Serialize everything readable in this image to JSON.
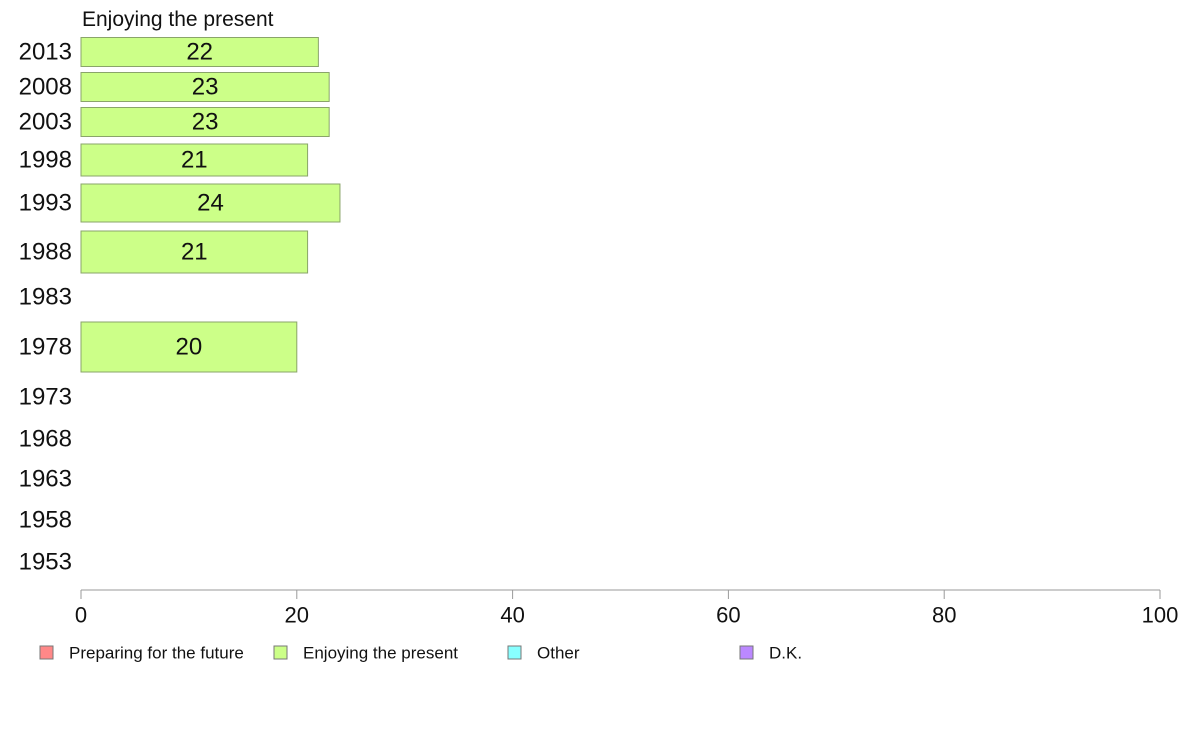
{
  "chart_data": {
    "type": "bar",
    "orientation": "horizontal",
    "panel_title": "Enjoying the present",
    "categories": [
      "2013",
      "2008",
      "2003",
      "1998",
      "1993",
      "1988",
      "1983",
      "1978",
      "1973",
      "1968",
      "1963",
      "1958",
      "1953"
    ],
    "series": [
      {
        "name": "Enjoying the present",
        "values": [
          22,
          23,
          23,
          21,
          24,
          21,
          null,
          20,
          null,
          null,
          null,
          null,
          null
        ],
        "labels": [
          "22",
          "23",
          "23",
          "21",
          "24",
          "21",
          "",
          "20",
          "",
          "",
          "",
          "",
          ""
        ],
        "color": "#ccff88"
      }
    ],
    "x_ticks": [
      "0",
      "20",
      "40",
      "60",
      "80",
      "100"
    ],
    "xlim": [
      0,
      100
    ],
    "grid": false,
    "legend": {
      "placement": "bottom-left",
      "items": [
        {
          "label": "Preparing for the future",
          "color": "#ff8888"
        },
        {
          "label": "Enjoying the present",
          "color": "#ccff88"
        },
        {
          "label": "Other",
          "color": "#88ffff"
        },
        {
          "label": "D.K.",
          "color": "#bb88ff"
        }
      ]
    }
  }
}
